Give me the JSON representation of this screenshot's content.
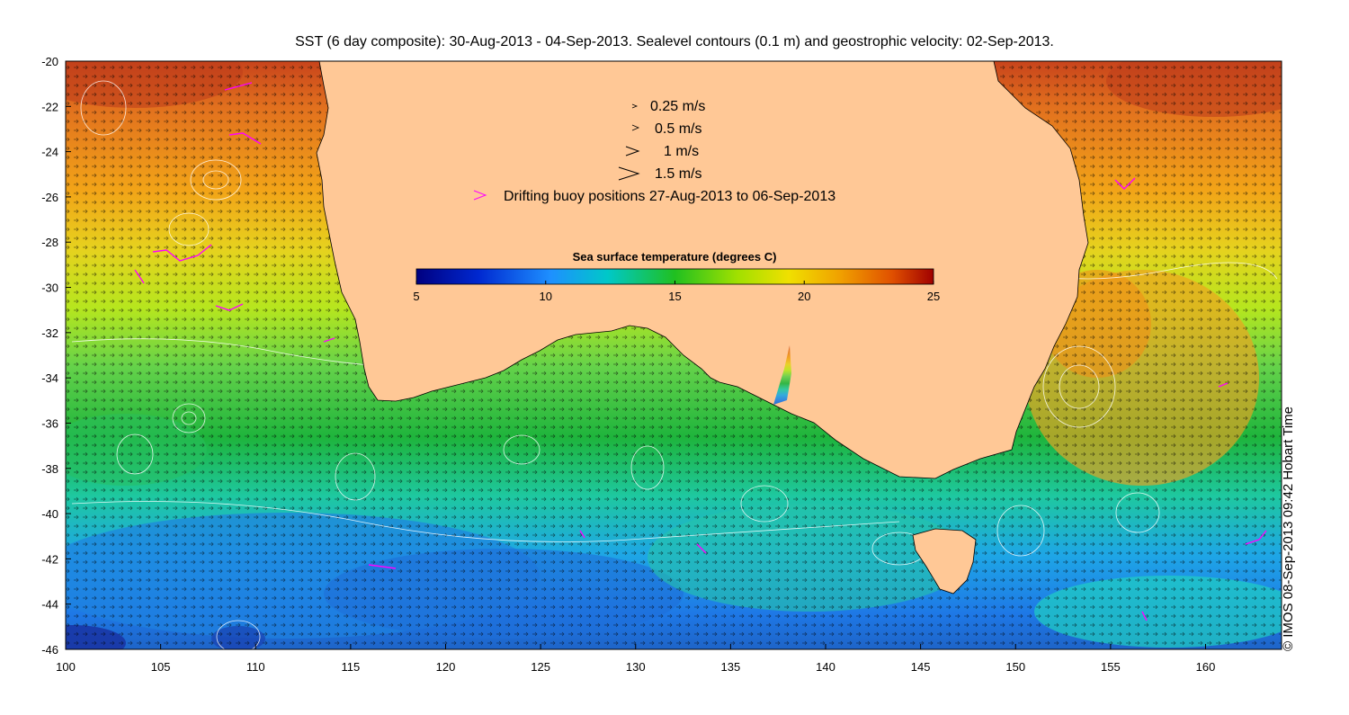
{
  "title": "SST (6 day composite): 30-Aug-2013 - 04-Sep-2013. Sealevel contours (0.1 m) and geostrophic velocity: 02-Sep-2013.",
  "copyright": "© IMOS 08-Sep-2013 09:42 Hobart Time",
  "legend": {
    "vectors": [
      "0.25 m/s",
      "0.5 m/s",
      "1 m/s",
      "1.5 m/s"
    ],
    "buoy_label": "Drifting buoy positions 27-Aug-2013 to 06-Sep-2013",
    "buoy_color": "#ff00ff"
  },
  "colorbar": {
    "title": "Sea surface temperature (degrees C)",
    "range": [
      5,
      25
    ],
    "ticks": [
      "5",
      "10",
      "15",
      "20",
      "25"
    ]
  },
  "map": {
    "x_ticks": [
      "100",
      "105",
      "110",
      "115",
      "120",
      "125",
      "130",
      "135",
      "140",
      "145",
      "150",
      "155",
      "160"
    ],
    "y_ticks": [
      "-20",
      "-22",
      "-24",
      "-26",
      "-28",
      "-30",
      "-32",
      "-34",
      "-36",
      "-38",
      "-40",
      "-42",
      "-44",
      "-46"
    ],
    "lon_range": [
      100,
      164
    ],
    "lat_range": [
      -46,
      -20
    ],
    "land_color": "#ffc896"
  }
}
